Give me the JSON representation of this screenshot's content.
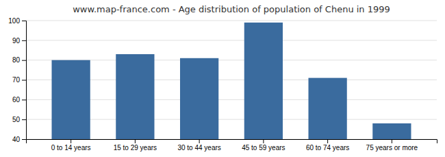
{
  "chart_data": {
    "type": "bar",
    "title": "www.map-france.com - Age distribution of population of Chenu in 1999",
    "categories": [
      "0 to 14 years",
      "15 to 29 years",
      "30 to 44 years",
      "45 to 59 years",
      "60 to 74 years",
      "75 years or more"
    ],
    "values": [
      80,
      83,
      81,
      99,
      71,
      48
    ],
    "color": "#3a6b9e",
    "ylim": [
      40,
      100
    ],
    "yticks": [
      40,
      50,
      60,
      70,
      80,
      90,
      100
    ],
    "grid": true
  }
}
